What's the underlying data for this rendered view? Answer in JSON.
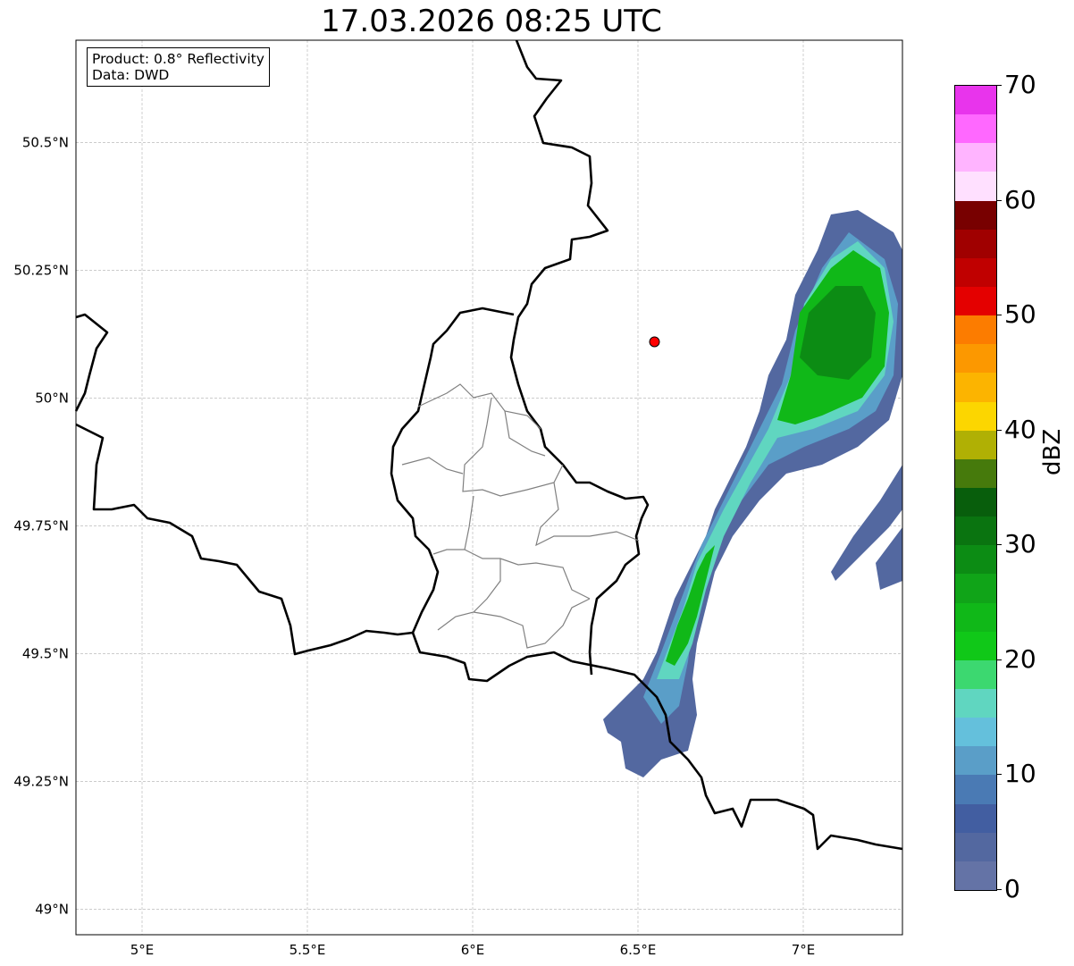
{
  "title": "17.03.2026 08:25 UTC",
  "info": {
    "product": "Product: 0.8° Reflectivity",
    "data": "Data: DWD"
  },
  "map": {
    "lon_range": [
      4.8,
      7.3
    ],
    "lat_range": [
      48.95,
      50.7
    ],
    "lon_ticks": [
      {
        "v": 5,
        "label": "5°E"
      },
      {
        "v": 5.5,
        "label": "5.5°E"
      },
      {
        "v": 6,
        "label": "6°E"
      },
      {
        "v": 6.5,
        "label": "6.5°E"
      },
      {
        "v": 7,
        "label": "7°E"
      }
    ],
    "lat_ticks": [
      {
        "v": 50.5,
        "label": "50.5°N"
      },
      {
        "v": 50.25,
        "label": "50.25°N"
      },
      {
        "v": 50,
        "label": "50°N"
      },
      {
        "v": 49.75,
        "label": "49.75°N"
      },
      {
        "v": 49.5,
        "label": "49.5°N"
      },
      {
        "v": 49.25,
        "label": "49.25°N"
      },
      {
        "v": 49,
        "label": "49°N"
      }
    ],
    "radar_site": {
      "lon": 6.55,
      "lat": 50.11,
      "color": "#ff0000"
    }
  },
  "colorbar": {
    "label": "dBZ",
    "min": 0,
    "max": 70,
    "ticks": [
      "0",
      "10",
      "20",
      "30",
      "40",
      "50",
      "60",
      "70"
    ],
    "colors": [
      "#6473a6",
      "#5368a0",
      "#425ea1",
      "#4a7ab4",
      "#5a9ec8",
      "#64c0dc",
      "#60d6c0",
      "#3cd870",
      "#10c818",
      "#10b818",
      "#10a418",
      "#0c8c14",
      "#0a7410",
      "#085e0c",
      "#467a0c",
      "#b0b004",
      "#fcd600",
      "#fcb400",
      "#fc9800",
      "#fc7c00",
      "#e40000",
      "#c00000",
      "#a00000",
      "#780000",
      "#ffe0ff",
      "#ffb4ff",
      "#ff68ff",
      "#e834ec"
    ]
  }
}
